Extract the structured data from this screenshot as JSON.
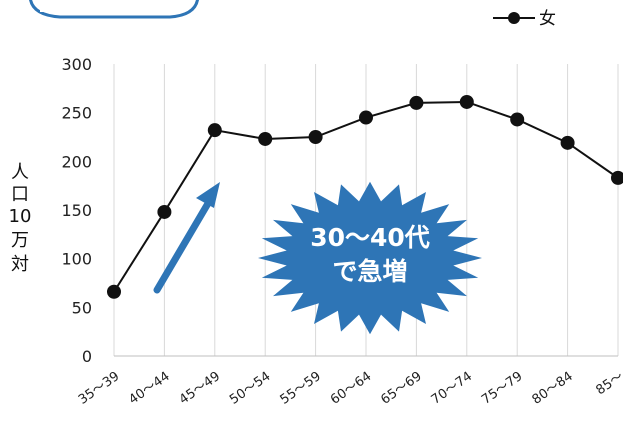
{
  "chart_data": {
    "type": "line",
    "categories": [
      "35～39",
      "40～44",
      "45～49",
      "50～54",
      "55～59",
      "60～64",
      "65～69",
      "70～74",
      "75～79",
      "80～84",
      "85～"
    ],
    "series": [
      {
        "name": "女",
        "values": [
          66,
          148,
          232,
          223,
          225,
          245,
          260,
          261,
          243,
          219,
          183
        ]
      }
    ],
    "ylabel": "人口10万対",
    "ylim": [
      0,
      300
    ],
    "yticks": [
      0,
      50,
      100,
      150,
      200,
      250,
      300
    ],
    "grid": "vertical",
    "legend": "top-right",
    "annotation": {
      "lines": [
        "30～40代",
        "で急増"
      ],
      "color": "#2e75b6"
    },
    "colors": {
      "line": "#111111",
      "grid": "#d9d9d9",
      "arrow": "#2e75b6",
      "badge_border": "#2e75b6"
    }
  }
}
